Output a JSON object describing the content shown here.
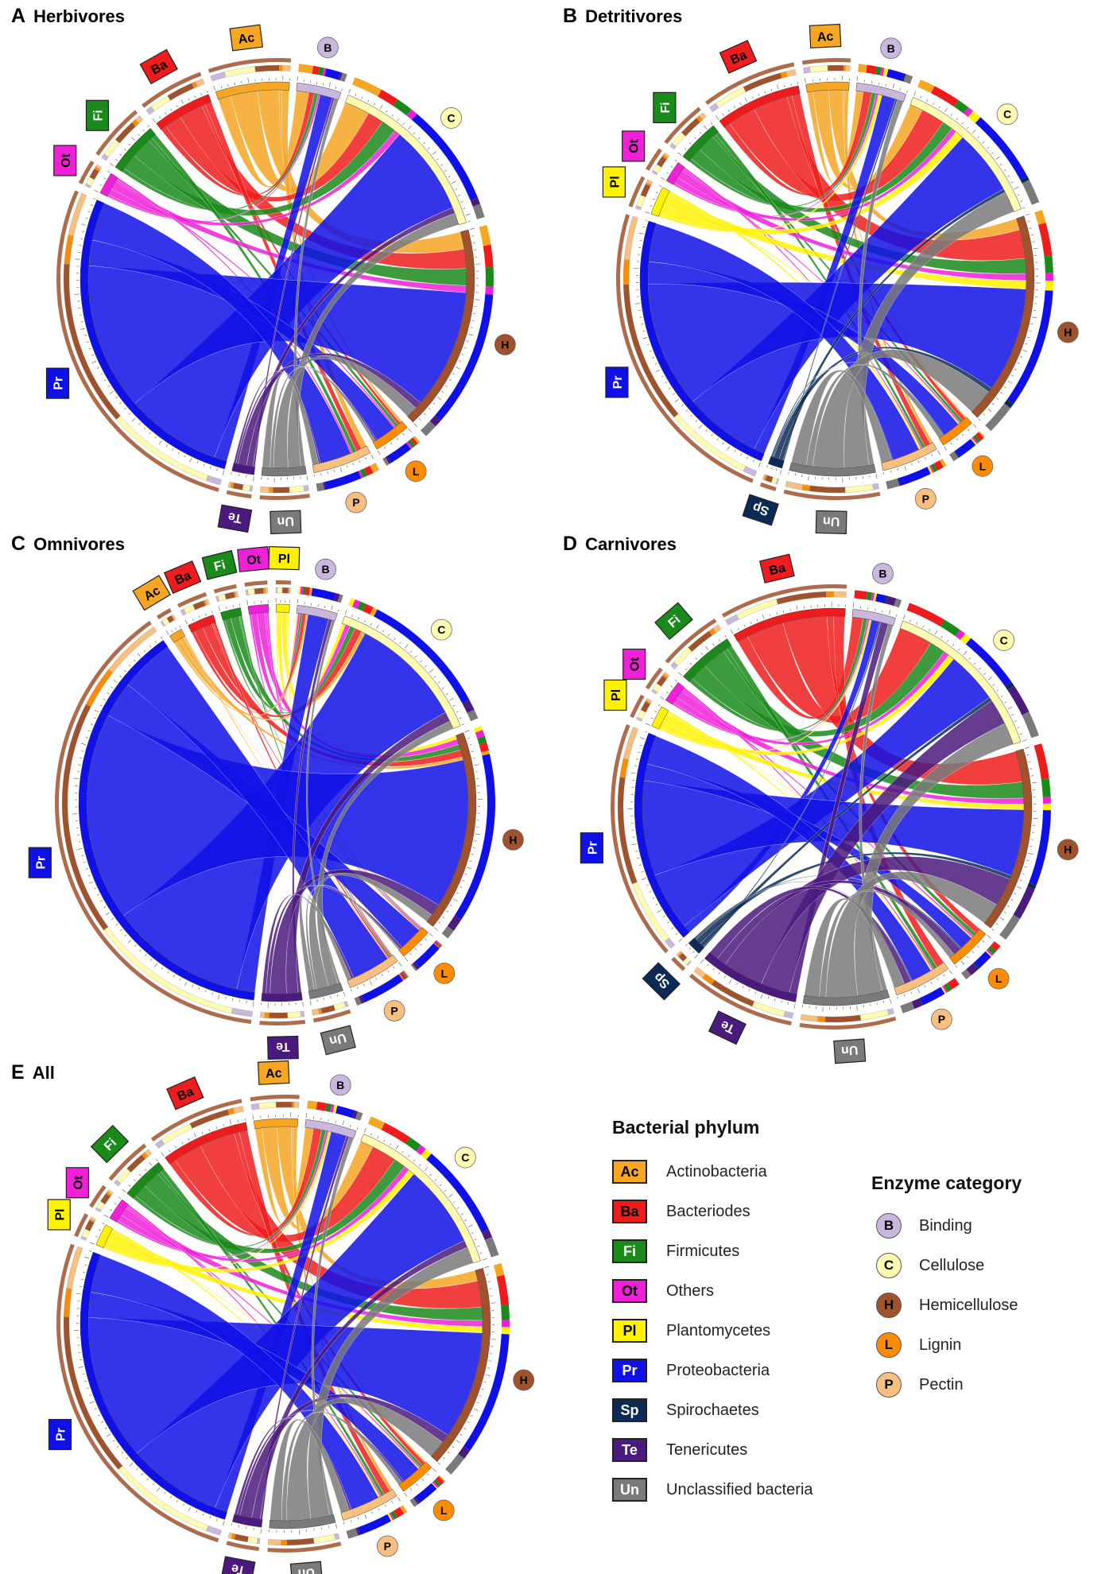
{
  "panels": [
    {
      "letter": "A",
      "title": "Herbivores"
    },
    {
      "letter": "B",
      "title": "Detritivores"
    },
    {
      "letter": "C",
      "title": "Omnivores"
    },
    {
      "letter": "D",
      "title": "Carnivores"
    },
    {
      "letter": "E",
      "title": "All"
    }
  ],
  "legend": {
    "phylum_title": "Bacterial phylum",
    "enzyme_title": "Enzyme category",
    "phyla": [
      {
        "code": "Ac",
        "name": "Actinobacteria",
        "color": "#F5A623",
        "text_color": "#000000"
      },
      {
        "code": "Ba",
        "name": "Bacteriodes",
        "color": "#EE1C1C",
        "text_color": "#000000"
      },
      {
        "code": "Fi",
        "name": "Firmicutes",
        "color": "#1A8A1A",
        "text_color": "#ffffff"
      },
      {
        "code": "Ot",
        "name": "Others",
        "color": "#F020D8",
        "text_color": "#000000"
      },
      {
        "code": "Pl",
        "name": "Plantomycetes",
        "color": "#FFF200",
        "text_color": "#000000"
      },
      {
        "code": "Pr",
        "name": "Proteobacteria",
        "color": "#1010E8",
        "text_color": "#ffffff"
      },
      {
        "code": "Sp",
        "name": "Spirochaetes",
        "color": "#0B2A55",
        "text_color": "#ffffff"
      },
      {
        "code": "Te",
        "name": "Tenericutes",
        "color": "#4B1A7E",
        "text_color": "#ffffff"
      },
      {
        "code": "Un",
        "name": "Unclassified bacteria",
        "color": "#7A7A7A",
        "text_color": "#ffffff"
      }
    ],
    "enzymes": [
      {
        "code": "B",
        "name": "Binding",
        "color": "#C9B7DE"
      },
      {
        "code": "C",
        "name": "Cellulose",
        "color": "#FFFBB0"
      },
      {
        "code": "H",
        "name": "Hemicellulose",
        "color": "#A0522D"
      },
      {
        "code": "L",
        "name": "Lignin",
        "color": "#FF8C00"
      },
      {
        "code": "P",
        "name": "Pectin",
        "color": "#F7BF80"
      }
    ]
  },
  "diagram_data": [
    {
      "panel": "A",
      "phyla": [
        "Ac",
        "Ba",
        "Fi",
        "Ot",
        "Pr",
        "Te",
        "Un"
      ],
      "phylum_sizes": [
        10,
        8,
        7,
        3,
        45,
        3,
        6
      ],
      "enzyme_sizes": {
        "B": 6,
        "C": 24,
        "H": 28,
        "L": 5,
        "P": 8
      },
      "flows": {
        "Ac": [
          0.18,
          0.38,
          0.3,
          0.04,
          0.1
        ],
        "Ba": [
          0.1,
          0.3,
          0.42,
          0.06,
          0.12
        ],
        "Fi": [
          0.08,
          0.32,
          0.42,
          0.08,
          0.1
        ],
        "Ot": [
          0.1,
          0.3,
          0.4,
          0.1,
          0.1
        ],
        "Pr": [
          0.04,
          0.3,
          0.46,
          0.08,
          0.12
        ],
        "Te": [
          0.1,
          0.3,
          0.4,
          0.1,
          0.1
        ],
        "Un": [
          0.1,
          0.3,
          0.34,
          0.08,
          0.18
        ]
      }
    },
    {
      "panel": "B",
      "phyla": [
        "Ac",
        "Ba",
        "Fi",
        "Ot",
        "Pl",
        "Pr",
        "Sp",
        "Un"
      ],
      "phylum_sizes": [
        6,
        12,
        6,
        3,
        4,
        40,
        2,
        12
      ],
      "enzyme_sizes": {
        "B": 7,
        "C": 22,
        "H": 30,
        "L": 5,
        "P": 8
      },
      "flows": {
        "Ac": [
          0.14,
          0.38,
          0.34,
          0.04,
          0.1
        ],
        "Ba": [
          0.08,
          0.34,
          0.42,
          0.06,
          0.1
        ],
        "Fi": [
          0.08,
          0.3,
          0.44,
          0.08,
          0.1
        ],
        "Ot": [
          0.1,
          0.3,
          0.4,
          0.1,
          0.1
        ],
        "Pl": [
          0.1,
          0.36,
          0.38,
          0.06,
          0.1
        ],
        "Pr": [
          0.04,
          0.28,
          0.46,
          0.08,
          0.14
        ],
        "Sp": [
          0.1,
          0.3,
          0.4,
          0.1,
          0.1
        ],
        "Un": [
          0.06,
          0.3,
          0.38,
          0.08,
          0.18
        ]
      }
    },
    {
      "panel": "C",
      "phyla": [
        "Pl",
        "Ot",
        "Fi",
        "Ba",
        "Ac",
        "Pr",
        "Te",
        "Un"
      ],
      "phylum_sizes": [
        2,
        3,
        3,
        4,
        2,
        70,
        6,
        5
      ],
      "enzyme_sizes": {
        "B": 6,
        "C": 24,
        "H": 30,
        "L": 5,
        "P": 8
      },
      "flows": {
        "Pl": [
          0.1,
          0.34,
          0.4,
          0.06,
          0.1
        ],
        "Ot": [
          0.1,
          0.3,
          0.4,
          0.1,
          0.1
        ],
        "Fi": [
          0.1,
          0.32,
          0.42,
          0.06,
          0.1
        ],
        "Ba": [
          0.12,
          0.34,
          0.38,
          0.06,
          0.1
        ],
        "Ac": [
          0.14,
          0.36,
          0.34,
          0.06,
          0.1
        ],
        "Pr": [
          0.04,
          0.3,
          0.46,
          0.08,
          0.12
        ],
        "Te": [
          0.08,
          0.3,
          0.42,
          0.1,
          0.1
        ],
        "Un": [
          0.08,
          0.3,
          0.36,
          0.08,
          0.18
        ]
      }
    },
    {
      "panel": "D",
      "phyla": [
        "Ba",
        "Fi",
        "Ot",
        "Pl",
        "Pr",
        "Sp",
        "Te",
        "Un"
      ],
      "phylum_sizes": [
        16,
        8,
        3,
        3,
        30,
        2,
        14,
        12
      ],
      "enzyme_sizes": {
        "B": 6,
        "C": 24,
        "H": 26,
        "L": 6,
        "P": 8
      },
      "flows": {
        "Ba": [
          0.1,
          0.34,
          0.4,
          0.06,
          0.1
        ],
        "Fi": [
          0.08,
          0.32,
          0.42,
          0.08,
          0.1
        ],
        "Ot": [
          0.1,
          0.3,
          0.4,
          0.1,
          0.1
        ],
        "Pl": [
          0.1,
          0.34,
          0.4,
          0.06,
          0.1
        ],
        "Pr": [
          0.04,
          0.28,
          0.46,
          0.08,
          0.14
        ],
        "Sp": [
          0.1,
          0.3,
          0.4,
          0.1,
          0.1
        ],
        "Te": [
          0.08,
          0.3,
          0.42,
          0.1,
          0.1
        ],
        "Un": [
          0.06,
          0.3,
          0.38,
          0.08,
          0.18
        ]
      }
    },
    {
      "panel": "E",
      "phyla": [
        "Ac",
        "Ba",
        "Fi",
        "Ot",
        "Pl",
        "Pr",
        "Te",
        "Un"
      ],
      "phylum_sizes": [
        6,
        12,
        6,
        3,
        3,
        45,
        4,
        9
      ],
      "enzyme_sizes": {
        "B": 7,
        "C": 24,
        "H": 28,
        "L": 5,
        "P": 8
      },
      "flows": {
        "Ac": [
          0.16,
          0.36,
          0.34,
          0.04,
          0.1
        ],
        "Ba": [
          0.08,
          0.34,
          0.42,
          0.06,
          0.1
        ],
        "Fi": [
          0.08,
          0.32,
          0.42,
          0.08,
          0.1
        ],
        "Ot": [
          0.1,
          0.3,
          0.4,
          0.1,
          0.1
        ],
        "Pl": [
          0.1,
          0.34,
          0.4,
          0.06,
          0.1
        ],
        "Pr": [
          0.04,
          0.3,
          0.46,
          0.08,
          0.12
        ],
        "Te": [
          0.08,
          0.3,
          0.42,
          0.1,
          0.1
        ],
        "Un": [
          0.06,
          0.3,
          0.38,
          0.08,
          0.18
        ]
      }
    }
  ]
}
